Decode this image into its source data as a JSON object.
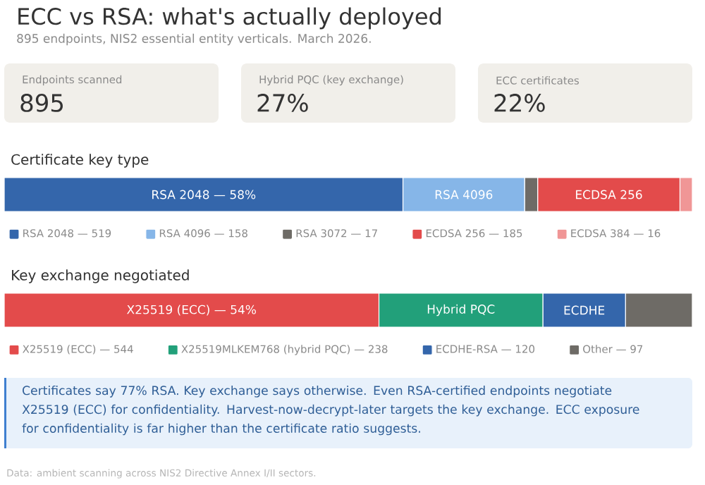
{
  "chart_data": [
    {
      "type": "other",
      "title": "ECC vs RSA: what's actually deployed",
      "subtitle": "895 endpoints, NIS2 essential entity verticals. March 2026.",
      "categories": [
        "Endpoints scanned",
        "Hybrid PQC (key exchange)",
        "ECC certificates"
      ],
      "value_labels": [
        "895",
        "27%",
        "22%"
      ]
    },
    {
      "type": "bar",
      "title": "Certificate key type",
      "orientation": "horizontal",
      "stacked": true,
      "legend": "bottom",
      "categories": [
        null
      ],
      "series": [
        {
          "name": "RSA 2048 — 519",
          "color": "#3466ab",
          "values": [
            58
          ],
          "value_labels": [
            "RSA 2048 — 58%"
          ]
        },
        {
          "name": "RSA 4096 — 158",
          "color": "#86b6e8",
          "values": [
            17.7
          ],
          "value_labels": [
            "RSA 4096"
          ]
        },
        {
          "name": "RSA 3072 — 17",
          "color": "#6e6b66",
          "values": [
            1.9
          ]
        },
        {
          "name": "ECDSA 256 — 185",
          "color": "#e34b4b",
          "values": [
            20.7
          ],
          "value_labels": [
            "ECDSA 256"
          ]
        },
        {
          "name": "ECDSA 384 — 16",
          "color": "#f09696",
          "values": [
            1.8
          ]
        }
      ]
    },
    {
      "type": "bar",
      "title": "Key exchange negotiated",
      "orientation": "horizontal",
      "stacked": true,
      "legend": "bottom",
      "categories": [
        null
      ],
      "series": [
        {
          "name": "X25519 (ECC) — 544",
          "color": "#e34b4b",
          "values": [
            54.4
          ],
          "value_labels": [
            "X25519 (ECC) — 54%"
          ]
        },
        {
          "name": "X25519MLKEM768 (hybrid PQC) — 238",
          "color": "#22a07a",
          "values": [
            23.8
          ],
          "value_labels": [
            "Hybrid PQC"
          ]
        },
        {
          "name": "ECDHE-RSA — 120",
          "color": "#3466ab",
          "values": [
            12.0
          ],
          "value_labels": [
            "ECDHE"
          ]
        },
        {
          "name": "Other — 97",
          "color": "#6e6b66",
          "values": [
            9.7
          ]
        }
      ],
      "annotations": [
        "Certificates say 77% RSA. Key exchange says otherwise. Even RSA-certified endpoints negotiate X25519 (ECC) for confidentiality. Harvest-now-decrypt-later targets the key exchange. ECC exposure for confidentiality is far higher than the certificate ratio suggests.",
        "Data: ambient scanning across NIS2 Directive Annex I/II sectors."
      ]
    }
  ]
}
